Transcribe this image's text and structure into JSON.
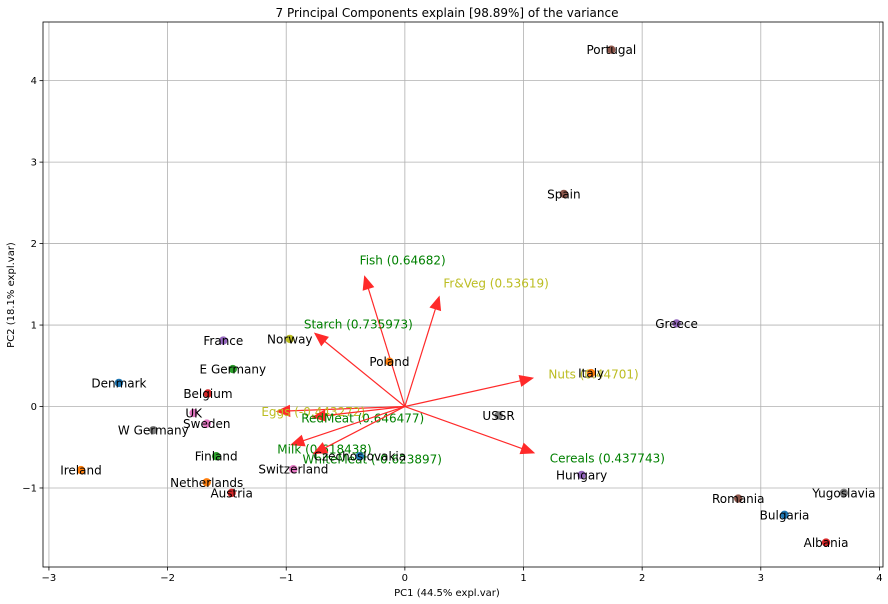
{
  "chart_data": {
    "type": "scatter",
    "title": "7 Principal Components explain [98.89%] of the variance",
    "xlabel": "PC1 (44.5% expl.var)",
    "ylabel": "PC2 (18.1% expl.var)",
    "xlim": [
      -3.05,
      4.03
    ],
    "ylim": [
      -1.97,
      4.72
    ],
    "xticks": [
      -3,
      -2,
      -1,
      0,
      1,
      2,
      3,
      4
    ],
    "yticks": [
      -1,
      0,
      1,
      2,
      3,
      4
    ],
    "grid": true,
    "points": [
      {
        "label": "Portugal",
        "x": 1.74,
        "y": 4.38,
        "color": "#8c564b"
      },
      {
        "label": "Spain",
        "x": 1.34,
        "y": 2.61,
        "color": "#8c564b"
      },
      {
        "label": "Greece",
        "x": 2.29,
        "y": 1.02,
        "color": "#9467bd"
      },
      {
        "label": "Italy",
        "x": 1.57,
        "y": 0.41,
        "color": "#ff7f0e"
      },
      {
        "label": "Norway",
        "x": -0.97,
        "y": 0.83,
        "color": "#bcbd22"
      },
      {
        "label": "Poland",
        "x": -0.13,
        "y": 0.55,
        "color": "#ff7f0e"
      },
      {
        "label": "France",
        "x": -1.53,
        "y": 0.81,
        "color": "#9467bd"
      },
      {
        "label": "E Germany",
        "x": -1.45,
        "y": 0.46,
        "color": "#2ca02c"
      },
      {
        "label": "Denmark",
        "x": -2.41,
        "y": 0.29,
        "color": "#1f77b4"
      },
      {
        "label": "Belgium",
        "x": -1.66,
        "y": 0.16,
        "color": "#d62728"
      },
      {
        "label": "UK",
        "x": -1.78,
        "y": -0.08,
        "color": "#e377c2"
      },
      {
        "label": "Sweden",
        "x": -1.67,
        "y": -0.21,
        "color": "#e377c2"
      },
      {
        "label": "W Germany",
        "x": -2.12,
        "y": -0.29,
        "color": "#7f7f7f"
      },
      {
        "label": "USSR",
        "x": 0.79,
        "y": -0.11,
        "color": "#7f7f7f"
      },
      {
        "label": "Finland",
        "x": -1.59,
        "y": -0.61,
        "color": "#2ca02c"
      },
      {
        "label": "Czechoslovakia",
        "x": -0.38,
        "y": -0.61,
        "color": "#1f77b4"
      },
      {
        "label": "Ireland",
        "x": -2.73,
        "y": -0.78,
        "color": "#ff7f0e"
      },
      {
        "label": "Switzerland",
        "x": -0.94,
        "y": -0.77,
        "color": "#e377c2"
      },
      {
        "label": "Hungary",
        "x": 1.49,
        "y": -0.84,
        "color": "#9467bd"
      },
      {
        "label": "Netherlands",
        "x": -1.67,
        "y": -0.93,
        "color": "#ff7f0e"
      },
      {
        "label": "Austria",
        "x": -1.46,
        "y": -1.06,
        "color": "#d62728"
      },
      {
        "label": "Romania",
        "x": 2.81,
        "y": -1.13,
        "color": "#8c564b"
      },
      {
        "label": "Yugoslavia",
        "x": 3.7,
        "y": -1.06,
        "color": "#7f7f7f"
      },
      {
        "label": "Bulgaria",
        "x": 3.2,
        "y": -1.33,
        "color": "#1f77b4"
      },
      {
        "label": "Albania",
        "x": 3.55,
        "y": -1.67,
        "color": "#d62728"
      }
    ],
    "vectors": [
      {
        "label": "Fish (0.64682)",
        "x": -0.34,
        "y": 1.6,
        "color": "#008000"
      },
      {
        "label": "Fr&Veg (0.53619)",
        "x": 0.29,
        "y": 1.35,
        "color": "#bcbd22"
      },
      {
        "label": "Starch (0.735973)",
        "x": -0.76,
        "y": 0.9,
        "color": "#008000"
      },
      {
        "label": "Nuts (0.44701)",
        "x": 1.08,
        "y": 0.35,
        "color": "#bcbd22"
      },
      {
        "label": "Eggs (-0.443272)",
        "x": -1.08,
        "y": -0.06,
        "color": "#bcbd22"
      },
      {
        "label": "RedMeat (0.646477)",
        "x": -0.78,
        "y": -0.13,
        "color": "#008000"
      },
      {
        "label": "Milk (0.618438)",
        "x": -0.96,
        "y": -0.47,
        "color": "#008000"
      },
      {
        "label": "WhiteMeat (-0.623897)",
        "x": -0.77,
        "y": -0.58,
        "color": "#008000"
      },
      {
        "label": "Cereals (0.437743)",
        "x": 1.09,
        "y": -0.57,
        "color": "#008000"
      }
    ],
    "vector_color": "#ff2a2a"
  }
}
